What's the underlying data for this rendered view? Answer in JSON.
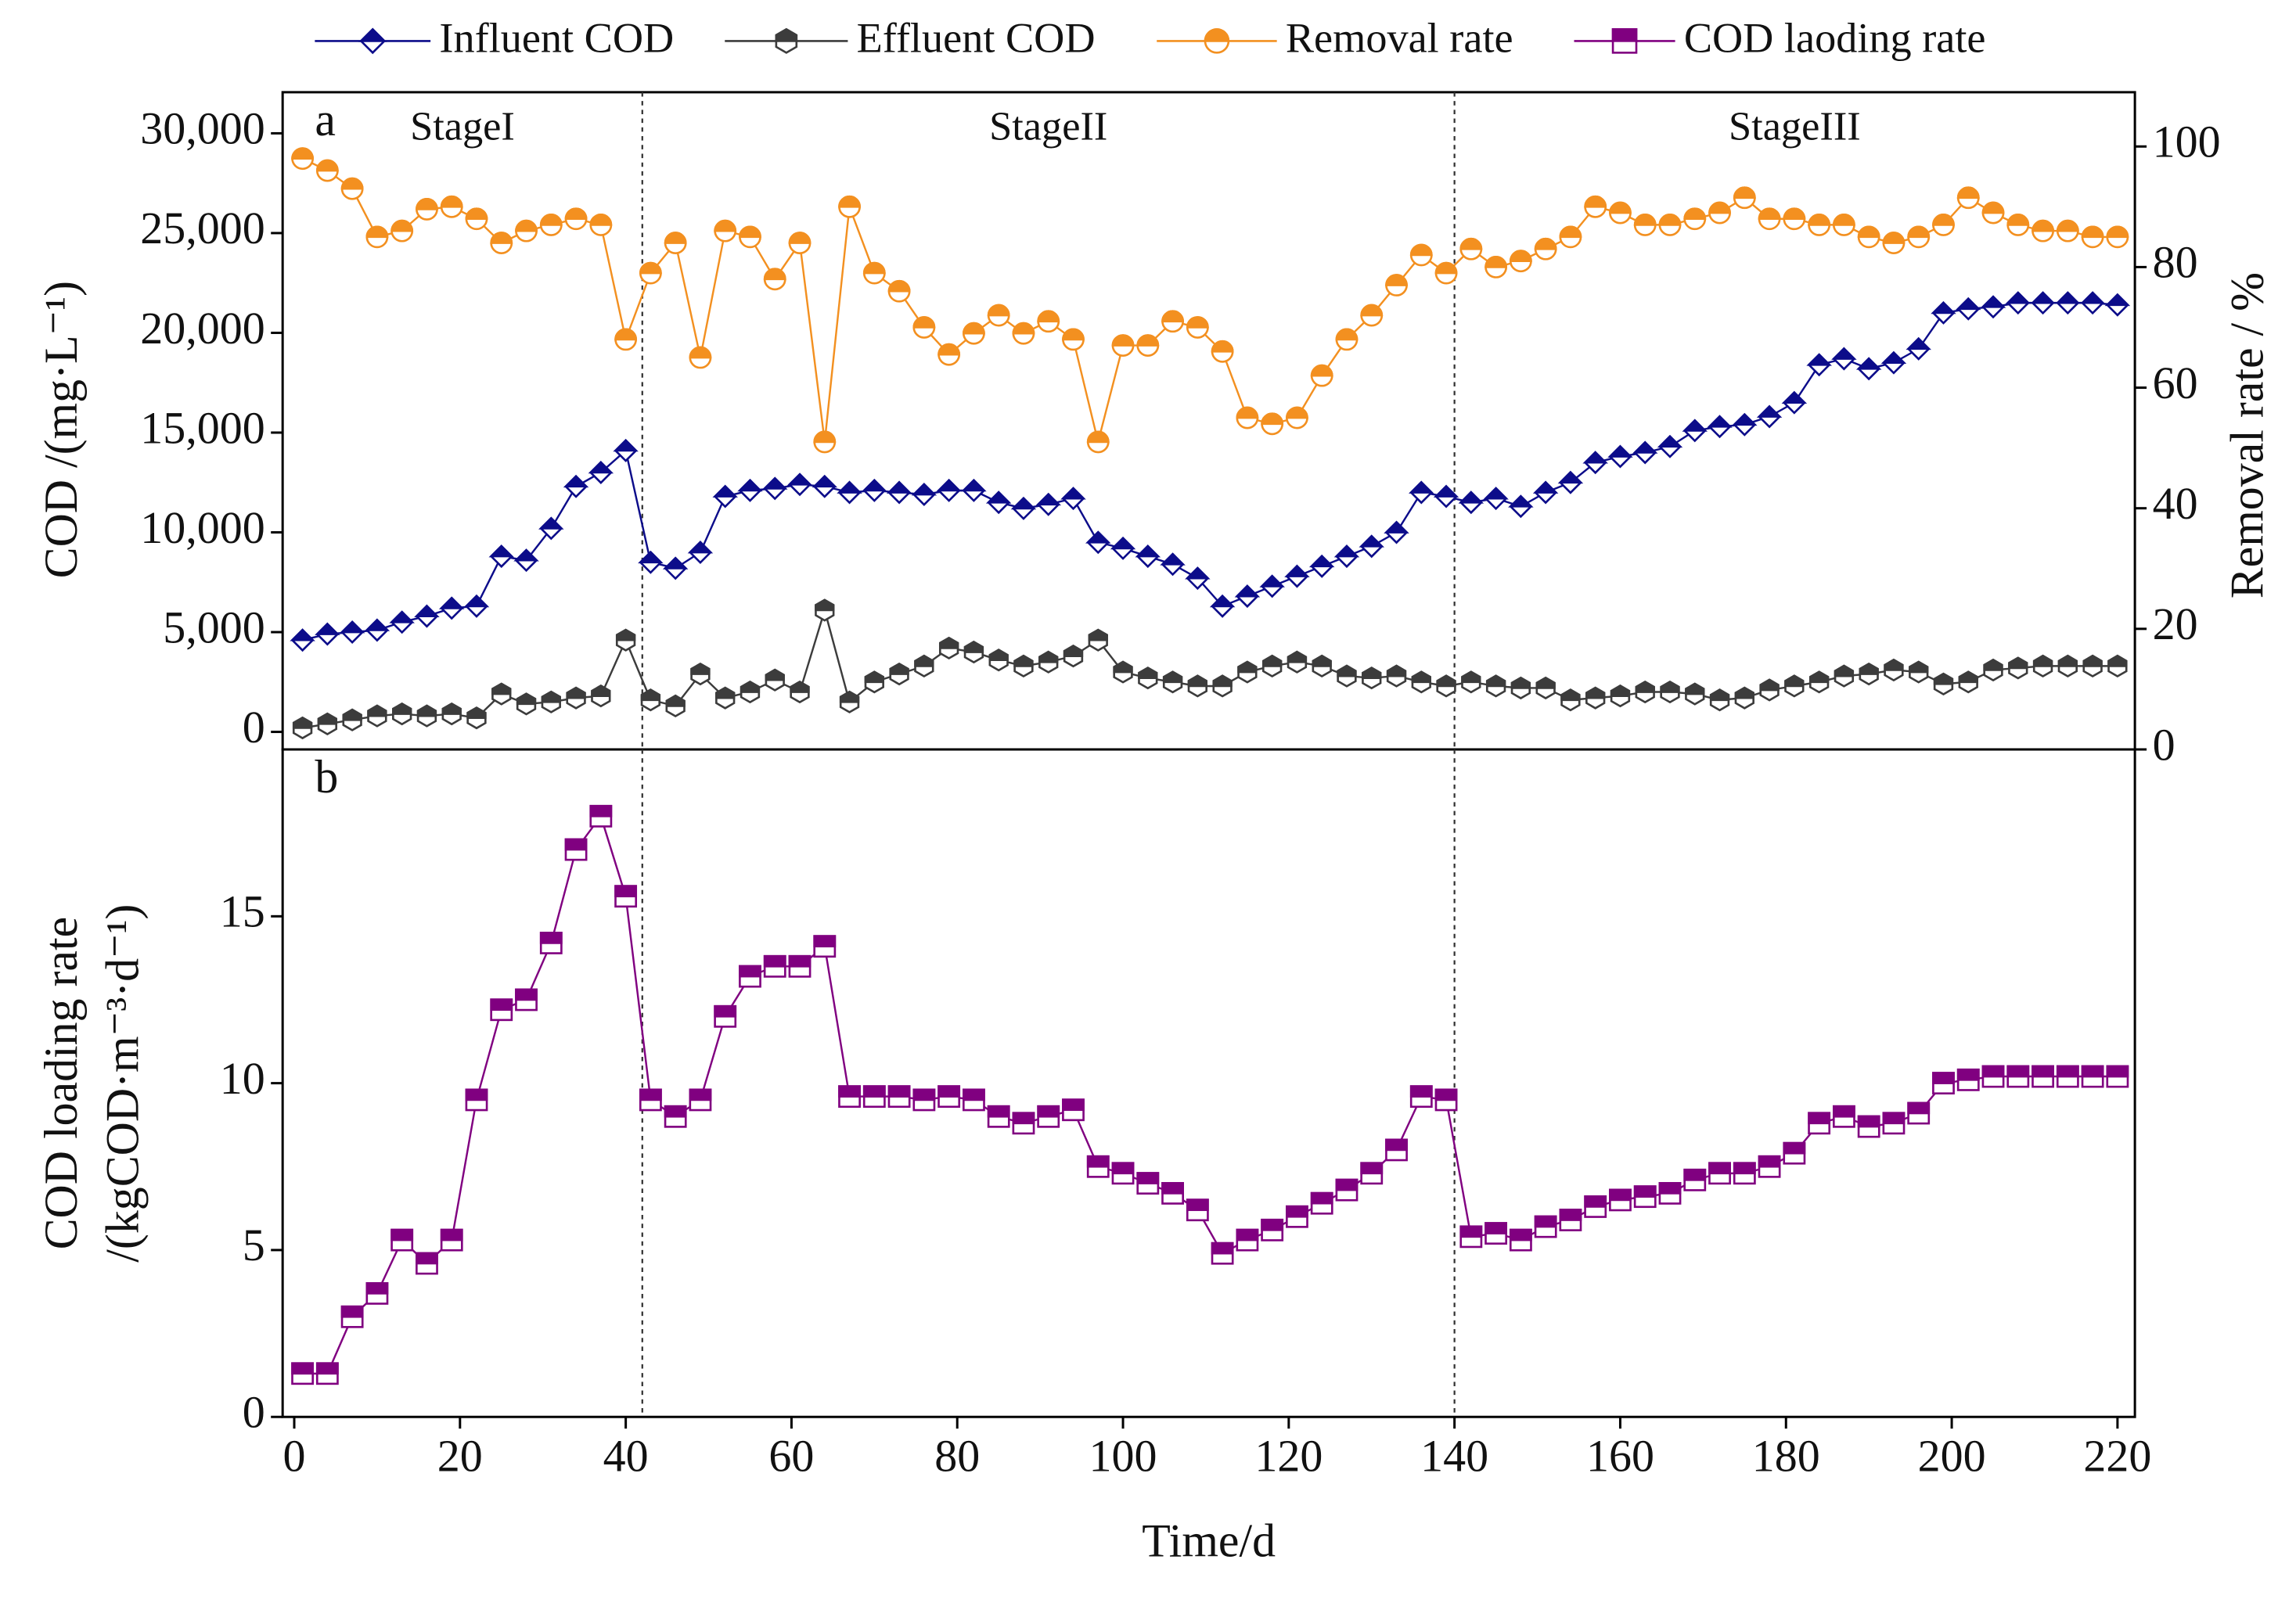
{
  "chart_data": [
    {
      "type": "line",
      "panel_label": "a",
      "ylabel": "COD /(mg·L⁻¹)",
      "y2label": "Removal rate / %",
      "xlim": [
        -1.4,
        222.1
      ],
      "ylim": [
        -880,
        32060
      ],
      "yticks": [
        0,
        {
          "value": 5000,
          "label": "5,000"
        },
        {
          "value": 10000,
          "label": "10,000"
        },
        {
          "value": 15000,
          "label": "15,000"
        },
        {
          "value": 20000,
          "label": "20,000"
        },
        {
          "value": 25000,
          "label": "25,000"
        },
        {
          "value": 30000,
          "label": "30,000"
        }
      ],
      "y2lim": [
        0,
        109
      ],
      "y2ticks": [
        0,
        20,
        40,
        60,
        80,
        100
      ],
      "stage_lines": [
        42,
        140
      ],
      "stages": [
        "StageI",
        "StageII",
        "StageIII"
      ],
      "x": [
        1,
        4,
        7,
        10,
        13,
        16,
        19,
        22,
        25,
        28,
        31,
        34,
        37,
        40,
        43,
        46,
        49,
        52,
        55,
        58,
        61,
        64,
        67,
        70,
        73,
        76,
        79,
        82,
        85,
        88,
        91,
        94,
        97,
        100,
        103,
        106,
        109,
        112,
        115,
        118,
        121,
        124,
        127,
        130,
        133,
        136,
        139,
        142,
        145,
        148,
        151,
        154,
        157,
        160,
        163,
        166,
        169,
        172,
        175,
        178,
        181,
        184,
        187,
        190,
        193,
        196,
        199,
        202,
        205,
        208,
        211,
        214,
        217,
        220
      ],
      "series": [
        {
          "name": "Influent COD",
          "color": "#0c0c8a",
          "marker": "diamond",
          "values": [
            4600,
            4900,
            5000,
            5100,
            5500,
            5800,
            6200,
            6300,
            8800,
            8600,
            10200,
            12300,
            13000,
            14100,
            8500,
            8200,
            9000,
            11800,
            12100,
            12200,
            12400,
            12300,
            12000,
            12100,
            12000,
            11900,
            12100,
            12100,
            11500,
            11200,
            11400,
            11700,
            9500,
            9200,
            8800,
            8400,
            7700,
            6300,
            6800,
            7300,
            7800,
            8300,
            8800,
            9300,
            10000,
            12000,
            11800,
            11500,
            11700,
            11300,
            12000,
            12500,
            13500,
            13800,
            14000,
            14300,
            15100,
            15300,
            15400,
            15800,
            16500,
            18400,
            18700,
            18200,
            18500,
            19200,
            21000,
            21200,
            21300,
            21500,
            21500,
            21500,
            21500,
            21400
          ]
        },
        {
          "name": "Effluent COD",
          "color": "#3c3c3c",
          "marker": "hexagon",
          "values": [
            200,
            400,
            600,
            800,
            900,
            800,
            900,
            700,
            1900,
            1400,
            1500,
            1700,
            1800,
            4600,
            1600,
            1300,
            2900,
            1700,
            2000,
            2600,
            2000,
            6100,
            1500,
            2500,
            2900,
            3300,
            4200,
            4000,
            3600,
            3300,
            3500,
            3800,
            4600,
            3000,
            2700,
            2500,
            2300,
            2300,
            3000,
            3300,
            3500,
            3300,
            2800,
            2700,
            2800,
            2500,
            2300,
            2500,
            2300,
            2200,
            2200,
            1600,
            1700,
            1800,
            2000,
            2000,
            1900,
            1600,
            1700,
            2100,
            2300,
            2500,
            2800,
            2900,
            3100,
            3000,
            2400,
            2500,
            3100,
            3200,
            3300,
            3300,
            3300,
            3300
          ]
        },
        {
          "name": "Removal rate",
          "color": "#f39020",
          "marker": "circle",
          "axis": "y2",
          "values": [
            98,
            96,
            93,
            85,
            86,
            89.6,
            90,
            88,
            84,
            86,
            87,
            88,
            87,
            68,
            79,
            84,
            65,
            86,
            85,
            78,
            84,
            51,
            90,
            79,
            76,
            70,
            65.5,
            69,
            72,
            69,
            71,
            68,
            51,
            67,
            67,
            71,
            70,
            66,
            55,
            54,
            55,
            62,
            68,
            72,
            77,
            82,
            79,
            83,
            80,
            81,
            83,
            85,
            90,
            89,
            87,
            87,
            88,
            89,
            91.5,
            88,
            88,
            87,
            87,
            85,
            84,
            85,
            87,
            91.5,
            89,
            87,
            86,
            86,
            85,
            85
          ]
        }
      ]
    },
    {
      "type": "line",
      "panel_label": "b",
      "ylabel": [
        "COD loading rate",
        "/(kgCOD·m⁻³·d⁻¹)"
      ],
      "xlabel": "Time/d",
      "xlim": [
        -1.4,
        222.1
      ],
      "ylim": [
        0,
        20
      ],
      "yticks": [
        0,
        5,
        10,
        15
      ],
      "xticks": [
        0,
        20,
        40,
        60,
        80,
        100,
        120,
        140,
        160,
        180,
        200,
        220
      ],
      "x": [
        1,
        4,
        7,
        10,
        13,
        16,
        19,
        22,
        25,
        28,
        31,
        34,
        37,
        40,
        43,
        46,
        49,
        52,
        55,
        58,
        61,
        64,
        67,
        70,
        73,
        76,
        79,
        82,
        85,
        88,
        91,
        94,
        97,
        100,
        103,
        106,
        109,
        112,
        115,
        118,
        121,
        124,
        127,
        130,
        133,
        136,
        139,
        142,
        145,
        148,
        151,
        154,
        157,
        160,
        163,
        166,
        169,
        172,
        175,
        178,
        181,
        184,
        187,
        190,
        193,
        196,
        199,
        202,
        205,
        208,
        211,
        214,
        217,
        220
      ],
      "series": [
        {
          "name": "COD laoding rate",
          "color": "#800080",
          "marker": "square",
          "values": [
            1.3,
            1.3,
            3.0,
            3.7,
            5.3,
            4.6,
            5.3,
            9.5,
            12.2,
            12.5,
            14.2,
            17.0,
            18.0,
            15.6,
            9.5,
            9.0,
            9.5,
            12.0,
            13.2,
            13.5,
            13.5,
            14.1,
            9.6,
            9.6,
            9.6,
            9.5,
            9.6,
            9.5,
            9.0,
            8.8,
            9.0,
            9.2,
            7.5,
            7.3,
            7.0,
            6.7,
            6.2,
            4.9,
            5.3,
            5.6,
            6.0,
            6.4,
            6.8,
            7.3,
            8.0,
            9.6,
            9.5,
            5.4,
            5.5,
            5.3,
            5.7,
            5.9,
            6.3,
            6.5,
            6.6,
            6.7,
            7.1,
            7.3,
            7.3,
            7.5,
            7.9,
            8.8,
            9.0,
            8.7,
            8.8,
            9.1,
            10.0,
            10.1,
            10.2,
            10.2,
            10.2,
            10.2,
            10.2,
            10.2
          ]
        }
      ]
    }
  ]
}
